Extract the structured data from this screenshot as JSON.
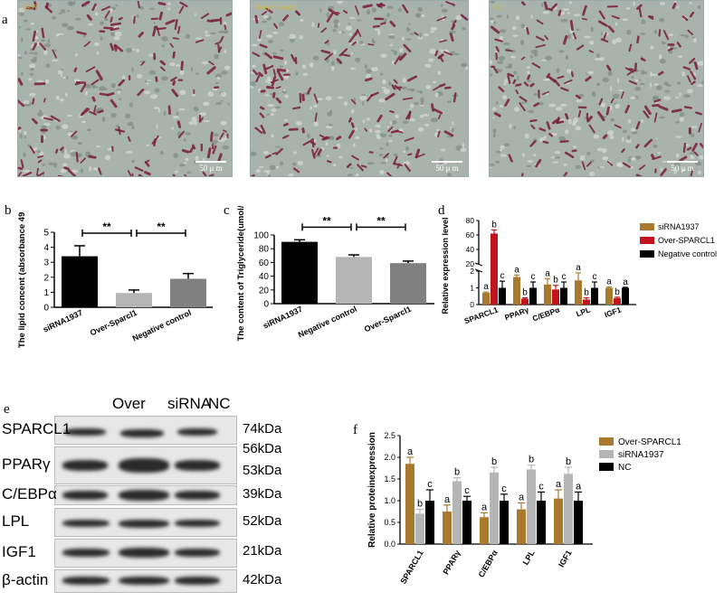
{
  "panels": {
    "a": {
      "label": "a",
      "images": [
        {
          "tag": "1937",
          "scale": "50 μ m"
        },
        {
          "tag": "Over-Sparcl1",
          "scale": "50 μ m"
        },
        {
          "tag": "NC",
          "scale": "50 μ m"
        }
      ]
    },
    "b": {
      "label": "b"
    },
    "c": {
      "label": "c"
    },
    "d": {
      "label": "d"
    },
    "e": {
      "label": "e",
      "columns": [
        "Over",
        "siRNA",
        "NC"
      ],
      "rows": [
        {
          "name": "SPARCL1",
          "kda": [
            "74kDa"
          ]
        },
        {
          "name": "PPARγ",
          "kda": [
            "56kDa",
            "53kDa"
          ]
        },
        {
          "name": "C/EBPα",
          "kda": [
            "39kDa"
          ]
        },
        {
          "name": "LPL",
          "kda": [
            "52kDa"
          ]
        },
        {
          "name": "IGF1",
          "kda": [
            "21kDa"
          ]
        },
        {
          "name": "β-actin",
          "kda": [
            "42kDa"
          ]
        }
      ]
    },
    "f": {
      "label": "f"
    }
  },
  "colors": {
    "black": "#000000",
    "lightgray": "#b5b5b5",
    "gray": "#808080",
    "brown": "#a97a2e",
    "red": "#c0141e"
  },
  "chart_data": [
    {
      "id": "b",
      "type": "bar",
      "ylabel": "The lipid concent (absorbance 490nm)",
      "categories": [
        "siRNA1937",
        "Over-Sparcl1",
        "Negative control"
      ],
      "values": [
        3.4,
        0.95,
        1.9
      ],
      "errors": [
        0.7,
        0.2,
        0.35
      ],
      "bar_colors": [
        "#000000",
        "#b5b5b5",
        "#808080"
      ],
      "ylim": [
        0,
        5
      ],
      "yticks": [
        "0",
        "1",
        "2",
        "3",
        "4",
        "5"
      ],
      "significance": [
        {
          "from": 0,
          "to": 1,
          "label": "**"
        },
        {
          "from": 1,
          "to": 2,
          "label": "**"
        }
      ]
    },
    {
      "id": "c",
      "type": "bar",
      "ylabel": "The content of Triglyceride(umol/L)",
      "categories": [
        "siRNA1937",
        "Negative control",
        "Over-Sparcl1"
      ],
      "values": [
        90,
        68,
        59
      ],
      "errors": [
        3,
        3,
        3
      ],
      "bar_colors": [
        "#000000",
        "#b5b5b5",
        "#808080"
      ],
      "ylim": [
        0,
        100
      ],
      "yticks": [
        "0",
        "20",
        "40",
        "60",
        "80",
        "100"
      ],
      "significance": [
        {
          "from": 0,
          "to": 1,
          "label": "**"
        },
        {
          "from": 1,
          "to": 2,
          "label": "**"
        }
      ]
    },
    {
      "id": "d",
      "type": "bar",
      "ylabel": "Relative expression level",
      "categories": [
        "SPARCL1",
        "PPARγ",
        "C/EBPα",
        "LPL",
        "IGF1"
      ],
      "series": [
        {
          "name": "siRNA1937",
          "color": "#a97a2e",
          "values": [
            0.7,
            1.65,
            1.2,
            1.45,
            1.0
          ],
          "errors": [
            0.05,
            0.12,
            0.35,
            0.45,
            0.05
          ],
          "letters": [
            "a",
            "a",
            "a",
            "a",
            "a"
          ]
        },
        {
          "name": "Over-SPARCL1",
          "color": "#c0141e",
          "values": [
            62,
            0.35,
            0.9,
            0.3,
            0.38
          ],
          "errors": [
            5,
            0.05,
            0.25,
            0.1,
            0.06
          ],
          "letters": [
            "b",
            "b",
            "b",
            "b",
            "b"
          ]
        },
        {
          "name": "Negative control",
          "color": "#000000",
          "values": [
            1.0,
            1.0,
            1.0,
            1.0,
            1.0
          ],
          "errors": [
            0.4,
            0.35,
            0.35,
            0.35,
            0.03
          ],
          "letters": [
            "c",
            "c",
            "c",
            "c",
            "a"
          ]
        }
      ],
      "axis_break": {
        "lower": [
          0,
          2
        ],
        "upper": [
          20,
          80
        ]
      },
      "yticks_lower": [
        "0",
        "1",
        "2"
      ],
      "yticks_upper": [
        "20",
        "40",
        "60",
        "80"
      ],
      "legend": "right"
    },
    {
      "id": "f",
      "type": "bar",
      "ylabel": "Relative proteinexpression",
      "categories": [
        "SPARCL1",
        "PPARγ",
        "C/EBPα",
        "LPL",
        "IGF1"
      ],
      "series": [
        {
          "name": "Over-SPARCL1",
          "color": "#a97a2e",
          "values": [
            1.85,
            0.75,
            0.62,
            0.8,
            1.05
          ],
          "errors": [
            0.15,
            0.15,
            0.1,
            0.15,
            0.2
          ],
          "letters": [
            "a",
            "a",
            "a",
            "a",
            "a"
          ]
        },
        {
          "name": "siRNA1937",
          "color": "#b5b5b5",
          "values": [
            0.7,
            1.45,
            1.65,
            1.72,
            1.62
          ],
          "errors": [
            0.1,
            0.08,
            0.12,
            0.1,
            0.15
          ],
          "letters": [
            "b",
            "b",
            "b",
            "b",
            "b"
          ]
        },
        {
          "name": "NC",
          "color": "#000000",
          "values": [
            1.0,
            1.0,
            1.0,
            1.0,
            1.0
          ],
          "errors": [
            0.25,
            0.1,
            0.15,
            0.2,
            0.2
          ],
          "letters": [
            "c",
            "c",
            "c",
            "c",
            "a"
          ]
        }
      ],
      "ylim": [
        0,
        2.5
      ],
      "yticks": [
        "0.0",
        "0.5",
        "1.0",
        "1.5",
        "2.0",
        "2.5"
      ],
      "legend": "top-right"
    }
  ]
}
